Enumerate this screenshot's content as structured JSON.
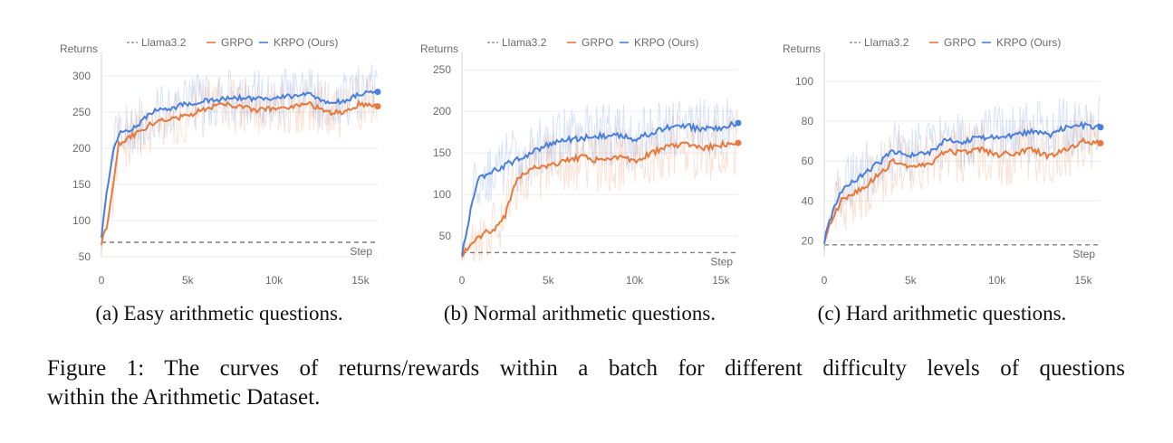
{
  "figure": {
    "caption_line1": "Figure 1: The curves of returns/rewards within a batch for different difficulty levels of questions",
    "caption_line2": "within the Arithmetic Dataset."
  },
  "colors": {
    "llama": "#7f7f7f",
    "grpo": "#e8793c",
    "krpo": "#4a7fdc"
  },
  "chart_data": [
    {
      "type": "line",
      "subcaption": "(a) Easy arithmetic questions.",
      "ylabel": "Returns",
      "xlabel": "Step",
      "xlim": [
        0,
        16000
      ],
      "ylim": [
        50,
        320
      ],
      "xticks": [
        0,
        5000,
        10000,
        15000
      ],
      "xtick_labels": [
        "0",
        "5k",
        "10k",
        "15k"
      ],
      "yticks": [
        50,
        100,
        150,
        200,
        250,
        300
      ],
      "ytick_labels": [
        "50",
        "100",
        "150",
        "200",
        "250",
        "300"
      ],
      "legend_position": "top",
      "grid": true,
      "noise": 40,
      "series": [
        {
          "name": "Llama3.2",
          "style": "dashed",
          "x": [
            0,
            16000
          ],
          "y": [
            70,
            70
          ]
        },
        {
          "name": "GRPO",
          "style": "solid",
          "x": [
            0,
            300,
            700,
            1000,
            1500,
            2000,
            3000,
            4000,
            5000,
            6000,
            7000,
            8000,
            9000,
            10000,
            11000,
            12000,
            13000,
            14000,
            15000,
            16000
          ],
          "y": [
            70,
            90,
            150,
            205,
            215,
            220,
            235,
            240,
            245,
            255,
            262,
            258,
            252,
            255,
            258,
            262,
            250,
            250,
            262,
            258
          ]
        },
        {
          "name": "KRPO (Ours)",
          "style": "solid",
          "x": [
            0,
            300,
            700,
            1000,
            1500,
            2000,
            3000,
            4000,
            5000,
            6000,
            7000,
            8000,
            9000,
            10000,
            11000,
            12000,
            13000,
            14000,
            15000,
            16000
          ],
          "y": [
            80,
            140,
            200,
            220,
            225,
            230,
            252,
            255,
            262,
            265,
            268,
            270,
            268,
            270,
            272,
            275,
            262,
            265,
            275,
            278
          ]
        }
      ]
    },
    {
      "type": "line",
      "subcaption": "(b) Normal arithmetic questions.",
      "ylabel": "Returns",
      "xlabel": "Step",
      "xlim": [
        0,
        16000
      ],
      "ylim": [
        25,
        260
      ],
      "xticks": [
        0,
        5000,
        10000,
        15000
      ],
      "xtick_labels": [
        "0",
        "5k",
        "10k",
        "15k"
      ],
      "yticks": [
        50,
        100,
        150,
        200,
        250
      ],
      "ytick_labels": [
        "50",
        "100",
        "150",
        "200",
        "250"
      ],
      "legend_position": "top",
      "grid": true,
      "noise": 40,
      "series": [
        {
          "name": "Llama3.2",
          "style": "dashed",
          "x": [
            0,
            16000
          ],
          "y": [
            30,
            30
          ]
        },
        {
          "name": "GRPO",
          "style": "solid",
          "x": [
            0,
            500,
            1000,
            2000,
            2500,
            3000,
            3500,
            4000,
            5000,
            6000,
            7000,
            8000,
            9000,
            10000,
            11000,
            12000,
            13000,
            14000,
            15000,
            16000
          ],
          "y": [
            28,
            40,
            50,
            60,
            75,
            110,
            125,
            130,
            135,
            140,
            145,
            140,
            145,
            140,
            150,
            160,
            160,
            155,
            160,
            162
          ]
        },
        {
          "name": "KRPO (Ours)",
          "style": "solid",
          "x": [
            0,
            500,
            1000,
            1500,
            2000,
            3000,
            4000,
            5000,
            6000,
            7000,
            8000,
            9000,
            10000,
            11000,
            12000,
            13000,
            14000,
            15000,
            16000
          ],
          "y": [
            30,
            80,
            120,
            125,
            130,
            140,
            150,
            160,
            165,
            168,
            170,
            172,
            165,
            175,
            180,
            182,
            178,
            180,
            186
          ]
        }
      ]
    },
    {
      "type": "line",
      "subcaption": "(c) Hard arithmetic questions.",
      "ylabel": "Returns",
      "xlabel": "Step",
      "xlim": [
        0,
        16000
      ],
      "ylim": [
        12,
        110
      ],
      "xticks": [
        0,
        5000,
        10000,
        15000
      ],
      "xtick_labels": [
        "0",
        "5k",
        "10k",
        "15k"
      ],
      "yticks": [
        20,
        40,
        60,
        80,
        100
      ],
      "ytick_labels": [
        "20",
        "40",
        "60",
        "80",
        "100"
      ],
      "legend_position": "top",
      "grid": true,
      "noise": 16,
      "series": [
        {
          "name": "Llama3.2",
          "style": "dashed",
          "x": [
            0,
            16000
          ],
          "y": [
            18,
            18
          ]
        },
        {
          "name": "GRPO",
          "style": "solid",
          "x": [
            0,
            500,
            1000,
            2000,
            3000,
            4000,
            5000,
            6000,
            7000,
            8000,
            9000,
            10000,
            11000,
            12000,
            13000,
            14000,
            15000,
            16000
          ],
          "y": [
            20,
            32,
            40,
            45,
            52,
            60,
            57,
            58,
            65,
            64,
            66,
            63,
            64,
            66,
            62,
            66,
            70,
            69
          ]
        },
        {
          "name": "KRPO (Ours)",
          "style": "solid",
          "x": [
            0,
            500,
            1000,
            2000,
            3000,
            4000,
            5000,
            6000,
            7000,
            8000,
            9000,
            10000,
            11000,
            12000,
            13000,
            14000,
            15000,
            16000
          ],
          "y": [
            20,
            35,
            45,
            52,
            58,
            65,
            63,
            64,
            70,
            70,
            72,
            72,
            73,
            75,
            73,
            77,
            78,
            77
          ]
        }
      ]
    }
  ]
}
